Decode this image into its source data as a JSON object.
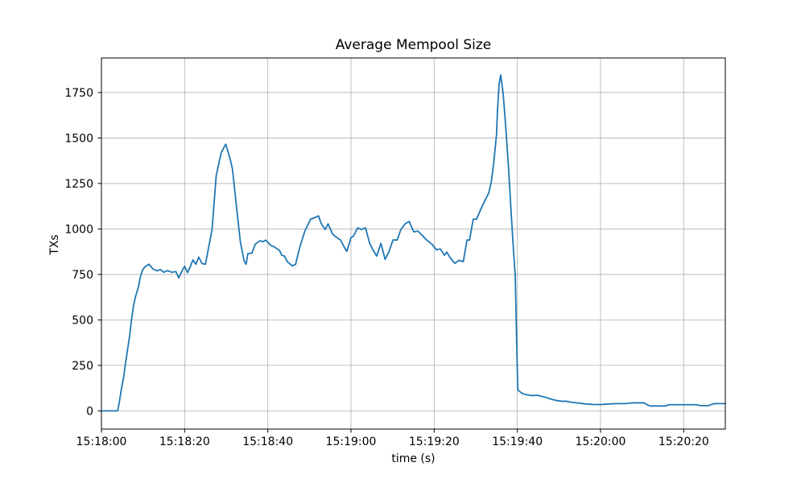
{
  "chart_data": {
    "type": "line",
    "title": "Average Mempool Size",
    "xlabel": "time (s)",
    "ylabel": "TXs",
    "x_tick_labels": [
      "15:18:00",
      "15:18:20",
      "15:18:40",
      "15:19:00",
      "15:19:20",
      "15:19:40",
      "15:20:00",
      "15:20:20"
    ],
    "x_tick_seconds": [
      0,
      20,
      40,
      60,
      80,
      100,
      120,
      140
    ],
    "xlim_seconds": [
      0,
      150
    ],
    "y_ticks": [
      0,
      250,
      500,
      750,
      1000,
      1250,
      1500,
      1750
    ],
    "ylim": [
      -100,
      1940
    ],
    "grid": true,
    "legend": "none",
    "line_color": "#1f77b4",
    "grid_color": "#b0b0b0",
    "spine_color": "#000000",
    "background": "#ffffff",
    "series": [
      {
        "name": "average-mempool-size",
        "points": [
          [
            0,
            0
          ],
          [
            1,
            0
          ],
          [
            2,
            0
          ],
          [
            3,
            0
          ],
          [
            3.9,
            0
          ],
          [
            4.3,
            47
          ],
          [
            4.8,
            120
          ],
          [
            5.3,
            180
          ],
          [
            5.7,
            246
          ],
          [
            6.2,
            325
          ],
          [
            6.8,
            414
          ],
          [
            7.2,
            496
          ],
          [
            7.7,
            576
          ],
          [
            8.2,
            629
          ],
          [
            8.9,
            680
          ],
          [
            9.3,
            731
          ],
          [
            9.9,
            775
          ],
          [
            10.5,
            793
          ],
          [
            11.4,
            806
          ],
          [
            12.4,
            780
          ],
          [
            13.4,
            770
          ],
          [
            14.2,
            777
          ],
          [
            15,
            762
          ],
          [
            15.9,
            771
          ],
          [
            16.9,
            762
          ],
          [
            17.9,
            766
          ],
          [
            18.6,
            731
          ],
          [
            19.2,
            762
          ],
          [
            20,
            795
          ],
          [
            20.7,
            760
          ],
          [
            21.3,
            789
          ],
          [
            22,
            830
          ],
          [
            22.7,
            806
          ],
          [
            23.4,
            845
          ],
          [
            24.2,
            810
          ],
          [
            25,
            806
          ],
          [
            26.6,
            997
          ],
          [
            27.6,
            1294
          ],
          [
            28.8,
            1420
          ],
          [
            29.9,
            1466
          ],
          [
            31,
            1380
          ],
          [
            31.5,
            1329
          ],
          [
            32.4,
            1138
          ],
          [
            33.4,
            930
          ],
          [
            34.3,
            824
          ],
          [
            34.8,
            806
          ],
          [
            35.2,
            864
          ],
          [
            36.2,
            868
          ],
          [
            37,
            917
          ],
          [
            38.1,
            935
          ],
          [
            38.9,
            930
          ],
          [
            39.5,
            939
          ],
          [
            40.8,
            908
          ],
          [
            41.4,
            904
          ],
          [
            42.8,
            882
          ],
          [
            43.4,
            855
          ],
          [
            44,
            851
          ],
          [
            44.7,
            820
          ],
          [
            45.9,
            797
          ],
          [
            46.7,
            806
          ],
          [
            47.2,
            855
          ],
          [
            47.8,
            908
          ],
          [
            48.9,
            988
          ],
          [
            50.3,
            1054
          ],
          [
            51.6,
            1065
          ],
          [
            52.2,
            1072
          ],
          [
            52.8,
            1032
          ],
          [
            53.8,
            997
          ],
          [
            54.5,
            1028
          ],
          [
            55.5,
            975
          ],
          [
            56.1,
            961
          ],
          [
            57.5,
            939
          ],
          [
            58.4,
            899
          ],
          [
            59,
            877
          ],
          [
            60,
            952
          ],
          [
            60.6,
            961
          ],
          [
            61.6,
            1006
          ],
          [
            62.5,
            997
          ],
          [
            63.5,
            1006
          ],
          [
            64.5,
            921
          ],
          [
            65.4,
            880
          ],
          [
            66.2,
            851
          ],
          [
            67.2,
            921
          ],
          [
            68.2,
            833
          ],
          [
            69.1,
            873
          ],
          [
            70.1,
            939
          ],
          [
            71.1,
            939
          ],
          [
            72,
            997
          ],
          [
            73,
            1028
          ],
          [
            74,
            1041
          ],
          [
            75.1,
            984
          ],
          [
            76.1,
            988
          ],
          [
            77.1,
            966
          ],
          [
            78.2,
            939
          ],
          [
            79.6,
            913
          ],
          [
            80.5,
            886
          ],
          [
            81.5,
            890
          ],
          [
            82.5,
            855
          ],
          [
            83,
            873
          ],
          [
            84,
            837
          ],
          [
            85,
            811
          ],
          [
            86,
            828
          ],
          [
            87,
            820
          ],
          [
            87.9,
            939
          ],
          [
            88.5,
            939
          ],
          [
            89.4,
            1054
          ],
          [
            90.2,
            1054
          ],
          [
            91.2,
            1108
          ],
          [
            92.1,
            1152
          ],
          [
            93.1,
            1196
          ],
          [
            93.7,
            1254
          ],
          [
            94.3,
            1360
          ],
          [
            95,
            1520
          ],
          [
            95.2,
            1639
          ],
          [
            95.6,
            1794
          ],
          [
            96,
            1847
          ],
          [
            96.6,
            1741
          ],
          [
            97.2,
            1564
          ],
          [
            97.9,
            1329
          ],
          [
            98.5,
            1094
          ],
          [
            99.1,
            873
          ],
          [
            99.5,
            740
          ],
          [
            99.8,
            420
          ],
          [
            100.1,
            115
          ],
          [
            101.1,
            97
          ],
          [
            102.1,
            89
          ],
          [
            103.4,
            84
          ],
          [
            104.8,
            86
          ],
          [
            105.9,
            80
          ],
          [
            106.7,
            75
          ],
          [
            107.9,
            66
          ],
          [
            109.2,
            58
          ],
          [
            110.6,
            53
          ],
          [
            111.7,
            53
          ],
          [
            113.1,
            47
          ],
          [
            114.5,
            44
          ],
          [
            116.4,
            38
          ],
          [
            118.3,
            35
          ],
          [
            120.1,
            35
          ],
          [
            122,
            38
          ],
          [
            124,
            40
          ],
          [
            125.9,
            40
          ],
          [
            127.5,
            44
          ],
          [
            129.5,
            44
          ],
          [
            130.5,
            44
          ],
          [
            131.1,
            35
          ],
          [
            131.9,
            27
          ],
          [
            135.8,
            27
          ],
          [
            136.3,
            34
          ],
          [
            143.1,
            34
          ],
          [
            144,
            29
          ],
          [
            146,
            29
          ],
          [
            147,
            38
          ],
          [
            147.6,
            40
          ],
          [
            150,
            40
          ]
        ]
      }
    ]
  }
}
